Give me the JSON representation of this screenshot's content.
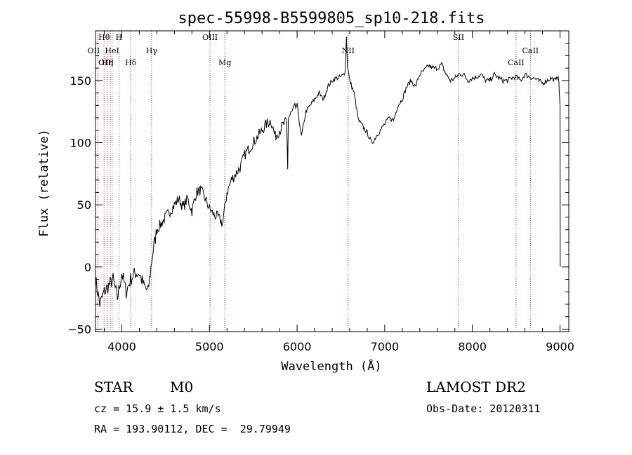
{
  "chart_data": {
    "type": "line",
    "title": "spec-55998-B5599805_sp10-218.fits",
    "xlabel": "Wavelength (Å)",
    "ylabel": "Flux (relative)",
    "xlim": [
      3700,
      9100
    ],
    "ylim": [
      -52,
      190
    ],
    "x_ticks": [
      4000,
      5000,
      6000,
      7000,
      8000,
      9000
    ],
    "y_ticks": [
      -50,
      0,
      50,
      100,
      150
    ],
    "grid": false,
    "series": [
      {
        "x": [
          3700,
          3750,
          3800,
          3850,
          3900,
          3950,
          4000,
          4050,
          4100,
          4150,
          4200,
          4250,
          4300,
          4350,
          4400,
          4450,
          4500,
          4550,
          4600,
          4650,
          4700,
          4750,
          4800,
          4850,
          4900,
          4950,
          5000,
          5050,
          5100,
          5150,
          5200,
          5250,
          5300,
          5350,
          5400,
          5450,
          5500,
          5550,
          5600,
          5650,
          5700,
          5750,
          5800,
          5850,
          5880,
          5893,
          5900,
          5920,
          5950,
          6000,
          6050,
          6100,
          6150,
          6200,
          6250,
          6300,
          6350,
          6400,
          6450,
          6500,
          6530,
          6550,
          6563,
          6575,
          6600,
          6650,
          6700,
          6750,
          6800,
          6850,
          6880,
          6900,
          6950,
          7000,
          7050,
          7100,
          7150,
          7200,
          7250,
          7300,
          7350,
          7400,
          7450,
          7500,
          7550,
          7600,
          7650,
          7700,
          7750,
          7800,
          7850,
          7900,
          7950,
          8000,
          8050,
          8100,
          8150,
          8200,
          8250,
          8300,
          8350,
          8400,
          8450,
          8500,
          8550,
          8600,
          8650,
          8700,
          8750,
          8800,
          8850,
          8900,
          8950,
          8980,
          9000,
          9002
        ],
        "y": [
          -10,
          -30,
          -20,
          -15,
          -10,
          -25,
          -5,
          -20,
          -10,
          -5,
          -5,
          -15,
          -20,
          10,
          30,
          35,
          40,
          45,
          50,
          55,
          48,
          55,
          45,
          60,
          62,
          55,
          47,
          42,
          40,
          35,
          60,
          70,
          75,
          80,
          90,
          95,
          100,
          105,
          110,
          115,
          118,
          105,
          110,
          115,
          117,
          80,
          120,
          122,
          125,
          130,
          105,
          125,
          130,
          135,
          140,
          135,
          145,
          150,
          152,
          153,
          155,
          158,
          185,
          162,
          150,
          140,
          118,
          113,
          108,
          100,
          102,
          105,
          110,
          115,
          120,
          118,
          130,
          135,
          145,
          150,
          145,
          155,
          158,
          162,
          160,
          160,
          163,
          155,
          150,
          152,
          155,
          155,
          150,
          152,
          153,
          155,
          150,
          150,
          155,
          152,
          150,
          150,
          152,
          153,
          150,
          155,
          153,
          152,
          150,
          148,
          150,
          152,
          150,
          155,
          130,
          0
        ]
      }
    ],
    "spectral_lines": [
      {
        "label": "Hθ",
        "x": 3798
      },
      {
        "label": "H",
        "x": 3968
      },
      {
        "label": "OII",
        "x": 3727
      },
      {
        "label": "HeI",
        "x": 3889
      },
      {
        "label": "OIII",
        "x": 3869
      },
      {
        "label": "Hη",
        "x": 3835
      },
      {
        "label": "Hδ",
        "x": 4102
      },
      {
        "label": "Hγ",
        "x": 4340
      },
      {
        "label": "OIII",
        "x": 5007
      },
      {
        "label": "Mg",
        "x": 5175
      },
      {
        "label": "NII",
        "x": 6583
      },
      {
        "label": "SII",
        "x": 7842
      },
      {
        "label": "CaII",
        "x": 8662
      },
      {
        "label": "CaII",
        "x": 8498
      }
    ]
  },
  "info": {
    "class_label": "STAR",
    "subclass_label": "M0",
    "redshift_text": "cz = 15.9 ± 1.5 km/s",
    "coords_text": "RA = 193.90112, DEC =  29.79949",
    "survey_label": "LAMOST DR2",
    "obs_date_text": "Obs-Date: 20120311"
  },
  "colors": {
    "spectrum": "#000000",
    "marker_line": "#b22222"
  }
}
